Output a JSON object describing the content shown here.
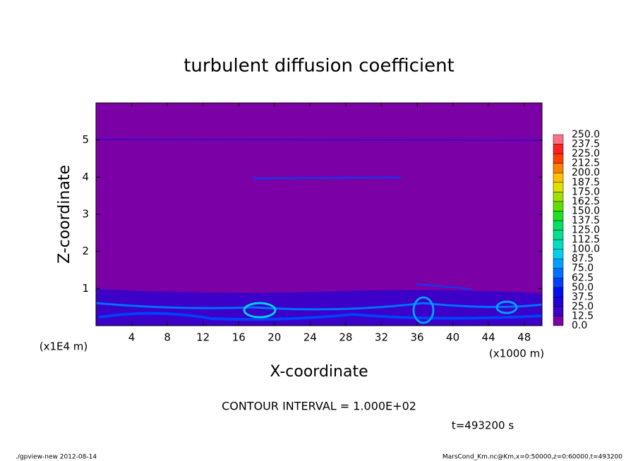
{
  "chart_data": {
    "type": "contour",
    "title": "turbulent diffusion coefficient",
    "xlabel": "X-coordinate",
    "ylabel": "Z-coordinate",
    "xunit": "(x1000 m)",
    "yunit": "(x1E4 m)",
    "xlim": [
      0,
      50
    ],
    "xticks": [
      4,
      8,
      12,
      16,
      20,
      24,
      28,
      32,
      36,
      40,
      44,
      48
    ],
    "ylim": [
      0,
      6
    ],
    "yticks": [
      1,
      2,
      3,
      4,
      5
    ],
    "levels": [
      {
        "value": 0,
        "label": "0.0"
      },
      12.5,
      {
        "value": 25,
        "label": "25.0"
      },
      37.5,
      {
        "value": 50,
        "label": "50.0"
      },
      62.5,
      {
        "value": 75,
        "label": "75.0"
      },
      87.5,
      {
        "value": 100,
        "label": "100.0"
      },
      112.5,
      {
        "value": 125,
        "label": "125.0"
      },
      137.5,
      {
        "value": 150,
        "label": "150.0"
      },
      162.5,
      {
        "value": 175,
        "label": "175.0"
      },
      187.5,
      {
        "value": 200,
        "label": "200.0"
      },
      212.5,
      {
        "value": 225,
        "label": "225.0"
      },
      237.5,
      {
        "value": 250,
        "label": "250.0"
      }
    ],
    "colors": [
      "#7b00a5",
      "#3c00c8",
      "#2000d8",
      "#0010f0",
      "#0040ff",
      "#0070ff",
      "#00a0ff",
      "#00d0f0",
      "#00e0c0",
      "#00e090",
      "#00e060",
      "#20e020",
      "#60e000",
      "#a0e000",
      "#e0e000",
      "#ffc000",
      "#ff8000",
      "#ff4000",
      "#ff2020",
      "#ff7080"
    ],
    "contour_interval": "CONTOUR INTERVAL = 1.000E+02",
    "time_label": "t=493200 s",
    "footer_left": "./gpview-new   2012-08-14",
    "footer_right": "MarsCond_Km.nc@Km,x=0:50000,z=0:60000,t=493200"
  }
}
